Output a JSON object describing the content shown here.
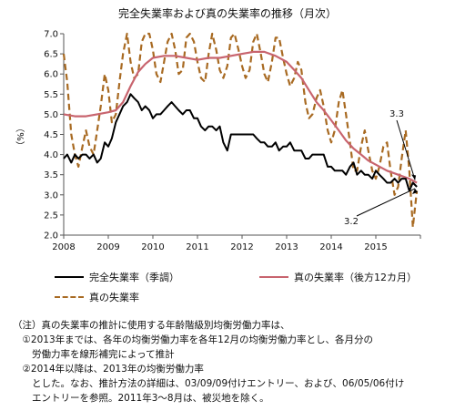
{
  "chart_data": {
    "type": "line",
    "title": "完全失業率および真の失業率の推移（月次）",
    "ylabel": "（%）",
    "ylim": [
      2.0,
      7.0
    ],
    "yticks": [
      "2.0",
      "2.5",
      "3.0",
      "3.5",
      "4.0",
      "4.5",
      "5.0",
      "5.5",
      "6.0",
      "6.5",
      "7.0"
    ],
    "xticks": [
      "2008",
      "2009",
      "2010",
      "2011",
      "2012",
      "2013",
      "2014",
      "2015"
    ],
    "xlim": [
      2008.0,
      2016.0
    ],
    "grid": false,
    "legend_position": "bottom",
    "colors": {
      "official": "#000000",
      "true12": "#c8646e",
      "true": "#a86a22"
    },
    "annotations": [
      {
        "text": "3.3",
        "x": 2015.92,
        "y": 3.3
      },
      {
        "text": "3.2",
        "x": 2015.92,
        "y": 3.2
      }
    ],
    "series": [
      {
        "name": "完全失業率（季調）",
        "style": "solid",
        "color": "#000000",
        "points": [
          [
            2008.0,
            3.9
          ],
          [
            2008.08,
            4.0
          ],
          [
            2008.17,
            3.8
          ],
          [
            2008.25,
            4.0
          ],
          [
            2008.33,
            3.9
          ],
          [
            2008.42,
            4.0
          ],
          [
            2008.5,
            4.0
          ],
          [
            2008.58,
            3.9
          ],
          [
            2008.67,
            4.0
          ],
          [
            2008.75,
            3.8
          ],
          [
            2008.83,
            3.9
          ],
          [
            2008.92,
            4.3
          ],
          [
            2009.0,
            4.2
          ],
          [
            2009.08,
            4.4
          ],
          [
            2009.17,
            4.8
          ],
          [
            2009.25,
            5.0
          ],
          [
            2009.33,
            5.2
          ],
          [
            2009.42,
            5.3
          ],
          [
            2009.5,
            5.5
          ],
          [
            2009.58,
            5.4
          ],
          [
            2009.67,
            5.3
          ],
          [
            2009.75,
            5.1
          ],
          [
            2009.83,
            5.2
          ],
          [
            2009.92,
            5.1
          ],
          [
            2010.0,
            4.9
          ],
          [
            2010.08,
            5.0
          ],
          [
            2010.17,
            5.0
          ],
          [
            2010.25,
            5.1
          ],
          [
            2010.33,
            5.2
          ],
          [
            2010.42,
            5.3
          ],
          [
            2010.5,
            5.2
          ],
          [
            2010.58,
            5.1
          ],
          [
            2010.67,
            5.0
          ],
          [
            2010.75,
            5.1
          ],
          [
            2010.83,
            5.1
          ],
          [
            2010.92,
            4.9
          ],
          [
            2011.0,
            4.9
          ],
          [
            2011.08,
            4.7
          ],
          [
            2011.17,
            4.6
          ],
          [
            2011.25,
            4.7
          ],
          [
            2011.33,
            4.7
          ],
          [
            2011.42,
            4.6
          ],
          [
            2011.5,
            4.7
          ],
          [
            2011.58,
            4.3
          ],
          [
            2011.67,
            4.1
          ],
          [
            2011.75,
            4.5
          ],
          [
            2011.83,
            4.5
          ],
          [
            2011.92,
            4.5
          ],
          [
            2012.0,
            4.5
          ],
          [
            2012.08,
            4.5
          ],
          [
            2012.17,
            4.5
          ],
          [
            2012.25,
            4.5
          ],
          [
            2012.33,
            4.4
          ],
          [
            2012.42,
            4.3
          ],
          [
            2012.5,
            4.3
          ],
          [
            2012.58,
            4.2
          ],
          [
            2012.67,
            4.2
          ],
          [
            2012.75,
            4.3
          ],
          [
            2012.83,
            4.1
          ],
          [
            2012.92,
            4.2
          ],
          [
            2013.0,
            4.2
          ],
          [
            2013.08,
            4.3
          ],
          [
            2013.17,
            4.1
          ],
          [
            2013.25,
            4.1
          ],
          [
            2013.33,
            4.1
          ],
          [
            2013.42,
            3.9
          ],
          [
            2013.5,
            3.9
          ],
          [
            2013.58,
            4.0
          ],
          [
            2013.67,
            4.0
          ],
          [
            2013.75,
            4.0
          ],
          [
            2013.83,
            4.0
          ],
          [
            2013.92,
            3.7
          ],
          [
            2014.0,
            3.7
          ],
          [
            2014.08,
            3.6
          ],
          [
            2014.17,
            3.6
          ],
          [
            2014.25,
            3.6
          ],
          [
            2014.33,
            3.5
          ],
          [
            2014.42,
            3.7
          ],
          [
            2014.5,
            3.8
          ],
          [
            2014.58,
            3.5
          ],
          [
            2014.67,
            3.6
          ],
          [
            2014.75,
            3.5
          ],
          [
            2014.83,
            3.5
          ],
          [
            2014.92,
            3.4
          ],
          [
            2015.0,
            3.6
          ],
          [
            2015.08,
            3.5
          ],
          [
            2015.17,
            3.4
          ],
          [
            2015.25,
            3.3
          ],
          [
            2015.33,
            3.3
          ],
          [
            2015.42,
            3.4
          ],
          [
            2015.5,
            3.3
          ],
          [
            2015.58,
            3.4
          ],
          [
            2015.67,
            3.4
          ],
          [
            2015.75,
            3.1
          ],
          [
            2015.83,
            3.3
          ],
          [
            2015.92,
            3.2
          ]
        ]
      },
      {
        "name": "真の失業率（後方12カ月）",
        "style": "solid-thick",
        "color": "#c8646e",
        "points": [
          [
            2008.0,
            5.0
          ],
          [
            2008.25,
            4.95
          ],
          [
            2008.5,
            4.95
          ],
          [
            2008.75,
            5.0
          ],
          [
            2009.0,
            5.05
          ],
          [
            2009.17,
            5.1
          ],
          [
            2009.33,
            5.3
          ],
          [
            2009.5,
            5.7
          ],
          [
            2009.67,
            6.05
          ],
          [
            2009.83,
            6.25
          ],
          [
            2010.0,
            6.4
          ],
          [
            2010.25,
            6.45
          ],
          [
            2010.5,
            6.45
          ],
          [
            2010.75,
            6.4
          ],
          [
            2011.0,
            6.35
          ],
          [
            2011.25,
            6.4
          ],
          [
            2011.5,
            6.4
          ],
          [
            2011.75,
            6.45
          ],
          [
            2012.0,
            6.5
          ],
          [
            2012.25,
            6.55
          ],
          [
            2012.5,
            6.55
          ],
          [
            2012.75,
            6.45
          ],
          [
            2013.0,
            6.3
          ],
          [
            2013.17,
            6.1
          ],
          [
            2013.33,
            5.9
          ],
          [
            2013.5,
            5.6
          ],
          [
            2013.67,
            5.3
          ],
          [
            2013.83,
            5.1
          ],
          [
            2014.0,
            4.85
          ],
          [
            2014.17,
            4.6
          ],
          [
            2014.33,
            4.35
          ],
          [
            2014.5,
            4.15
          ],
          [
            2014.67,
            4.0
          ],
          [
            2014.83,
            3.85
          ],
          [
            2015.0,
            3.75
          ],
          [
            2015.25,
            3.6
          ],
          [
            2015.5,
            3.5
          ],
          [
            2015.75,
            3.4
          ],
          [
            2015.92,
            3.3
          ]
        ]
      },
      {
        "name": "真の失業率",
        "style": "dashed",
        "color": "#a86a22",
        "points": [
          [
            2008.0,
            6.5
          ],
          [
            2008.08,
            5.8
          ],
          [
            2008.17,
            4.5
          ],
          [
            2008.25,
            4.0
          ],
          [
            2008.33,
            3.7
          ],
          [
            2008.42,
            4.2
          ],
          [
            2008.5,
            4.6
          ],
          [
            2008.58,
            4.2
          ],
          [
            2008.67,
            4.0
          ],
          [
            2008.75,
            4.6
          ],
          [
            2008.83,
            5.2
          ],
          [
            2008.92,
            6.0
          ],
          [
            2009.0,
            5.6
          ],
          [
            2009.08,
            4.8
          ],
          [
            2009.17,
            5.0
          ],
          [
            2009.25,
            5.8
          ],
          [
            2009.33,
            6.5
          ],
          [
            2009.42,
            7.0
          ],
          [
            2009.5,
            6.3
          ],
          [
            2009.58,
            5.9
          ],
          [
            2009.67,
            6.0
          ],
          [
            2009.75,
            6.8
          ],
          [
            2009.83,
            7.0
          ],
          [
            2009.92,
            7.0
          ],
          [
            2010.0,
            6.6
          ],
          [
            2010.08,
            6.0
          ],
          [
            2010.17,
            5.8
          ],
          [
            2010.25,
            6.3
          ],
          [
            2010.33,
            6.8
          ],
          [
            2010.42,
            7.0
          ],
          [
            2010.5,
            6.6
          ],
          [
            2010.58,
            6.0
          ],
          [
            2010.67,
            6.1
          ],
          [
            2010.75,
            6.9
          ],
          [
            2010.83,
            7.0
          ],
          [
            2010.92,
            6.8
          ],
          [
            2011.0,
            6.3
          ],
          [
            2011.08,
            5.9
          ],
          [
            2011.17,
            5.8
          ],
          [
            2011.25,
            6.5
          ],
          [
            2011.33,
            7.0
          ],
          [
            2011.42,
            6.6
          ],
          [
            2011.5,
            6.1
          ],
          [
            2011.58,
            5.9
          ],
          [
            2011.67,
            6.2
          ],
          [
            2011.75,
            6.9
          ],
          [
            2011.83,
            7.0
          ],
          [
            2011.92,
            6.6
          ],
          [
            2012.0,
            6.2
          ],
          [
            2012.08,
            5.9
          ],
          [
            2012.17,
            6.1
          ],
          [
            2012.25,
            6.8
          ],
          [
            2012.33,
            7.0
          ],
          [
            2012.42,
            6.5
          ],
          [
            2012.5,
            6.0
          ],
          [
            2012.58,
            5.8
          ],
          [
            2012.67,
            6.3
          ],
          [
            2012.75,
            6.9
          ],
          [
            2012.83,
            6.9
          ],
          [
            2012.92,
            6.4
          ],
          [
            2013.0,
            6.0
          ],
          [
            2013.08,
            5.7
          ],
          [
            2013.17,
            5.9
          ],
          [
            2013.25,
            6.3
          ],
          [
            2013.33,
            6.1
          ],
          [
            2013.42,
            5.3
          ],
          [
            2013.5,
            4.9
          ],
          [
            2013.58,
            5.0
          ],
          [
            2013.67,
            5.4
          ],
          [
            2013.75,
            5.6
          ],
          [
            2013.83,
            5.2
          ],
          [
            2013.92,
            4.6
          ],
          [
            2014.0,
            4.3
          ],
          [
            2014.08,
            4.6
          ],
          [
            2014.17,
            5.3
          ],
          [
            2014.25,
            5.6
          ],
          [
            2014.33,
            5.0
          ],
          [
            2014.42,
            4.3
          ],
          [
            2014.5,
            3.6
          ],
          [
            2014.58,
            3.6
          ],
          [
            2014.67,
            4.2
          ],
          [
            2014.75,
            4.6
          ],
          [
            2014.83,
            4.1
          ],
          [
            2014.92,
            3.6
          ],
          [
            2015.0,
            3.4
          ],
          [
            2015.08,
            3.7
          ],
          [
            2015.17,
            4.2
          ],
          [
            2015.25,
            4.3
          ],
          [
            2015.33,
            3.6
          ],
          [
            2015.42,
            3.0
          ],
          [
            2015.5,
            3.2
          ],
          [
            2015.58,
            3.9
          ],
          [
            2015.67,
            4.6
          ],
          [
            2015.75,
            3.6
          ],
          [
            2015.83,
            2.2
          ],
          [
            2015.92,
            3.1
          ]
        ]
      }
    ]
  },
  "notes": [
    "（注）真の失業率の推計に使用する年齢階級別均衡労働力率は、",
    "　①2013年までは、各年の均衡労働力率を各年12月の均衡労働力率とし、各月分の",
    "　　労働力率を線形補完によって推計",
    "　②2014年以降は、2013年の均衡労働力率",
    "　　とした。なお、推計方法の詳細は、03/09/09付けエントリー、および、06/05/06付け",
    "　　エントリーを参照。2011年3～8月は、被災地を除く。"
  ]
}
